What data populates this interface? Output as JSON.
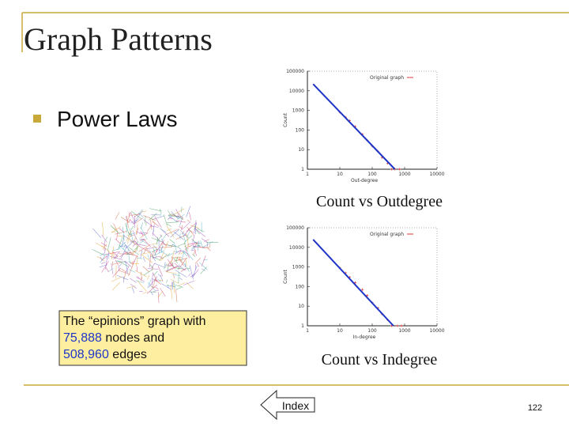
{
  "header": {
    "title": "Graph Patterns"
  },
  "bullets": [
    "Power Laws"
  ],
  "chart_data": [
    {
      "type": "scatter",
      "caption": "Count vs Outdegree",
      "xlabel": "Out-degree",
      "ylabel": "Count",
      "log_scale": true,
      "xlim": [
        1,
        10000
      ],
      "ylim": [
        1,
        100000
      ],
      "xticks": [
        1,
        10,
        100,
        1000,
        10000
      ],
      "yticks": [
        1,
        10,
        100,
        1000,
        10000,
        100000
      ],
      "series": [
        {
          "name": "Original graph",
          "color": "#e03a3a",
          "x": [
            10,
            15,
            20,
            30,
            50,
            70,
            100,
            150,
            200,
            300,
            400,
            500,
            700
          ],
          "y": [
            800,
            450,
            300,
            150,
            60,
            30,
            15,
            8,
            4,
            2,
            1,
            1,
            1
          ]
        },
        {
          "color": "#1f35c8",
          "x": [
            1.5,
            500
          ],
          "y": [
            22000,
            1
          ]
        }
      ]
    },
    {
      "type": "scatter",
      "caption": "Count vs Indegree",
      "xlabel": "In-degree",
      "ylabel": "Count",
      "log_scale": true,
      "xlim": [
        1,
        10000
      ],
      "ylim": [
        1,
        100000
      ],
      "xticks": [
        1,
        10,
        100,
        1000,
        10000
      ],
      "yticks": [
        1,
        10,
        100,
        1000,
        10000,
        100000
      ],
      "series": [
        {
          "name": "Original graph",
          "color": "#e03a3a",
          "x": [
            10,
            15,
            20,
            30,
            50,
            70,
            100,
            150,
            200,
            300,
            400,
            600,
            800
          ],
          "y": [
            900,
            500,
            300,
            160,
            70,
            35,
            15,
            8,
            4,
            2,
            1,
            1,
            1
          ]
        },
        {
          "color": "#1f35c8",
          "x": [
            1.5,
            450
          ],
          "y": [
            25000,
            1
          ]
        }
      ]
    }
  ],
  "image_caption": [
    "The “epinions” graph with ",
    "75,888",
    " nodes and ",
    "508,960",
    " edges"
  ],
  "button": "Index",
  "page_number": "122"
}
